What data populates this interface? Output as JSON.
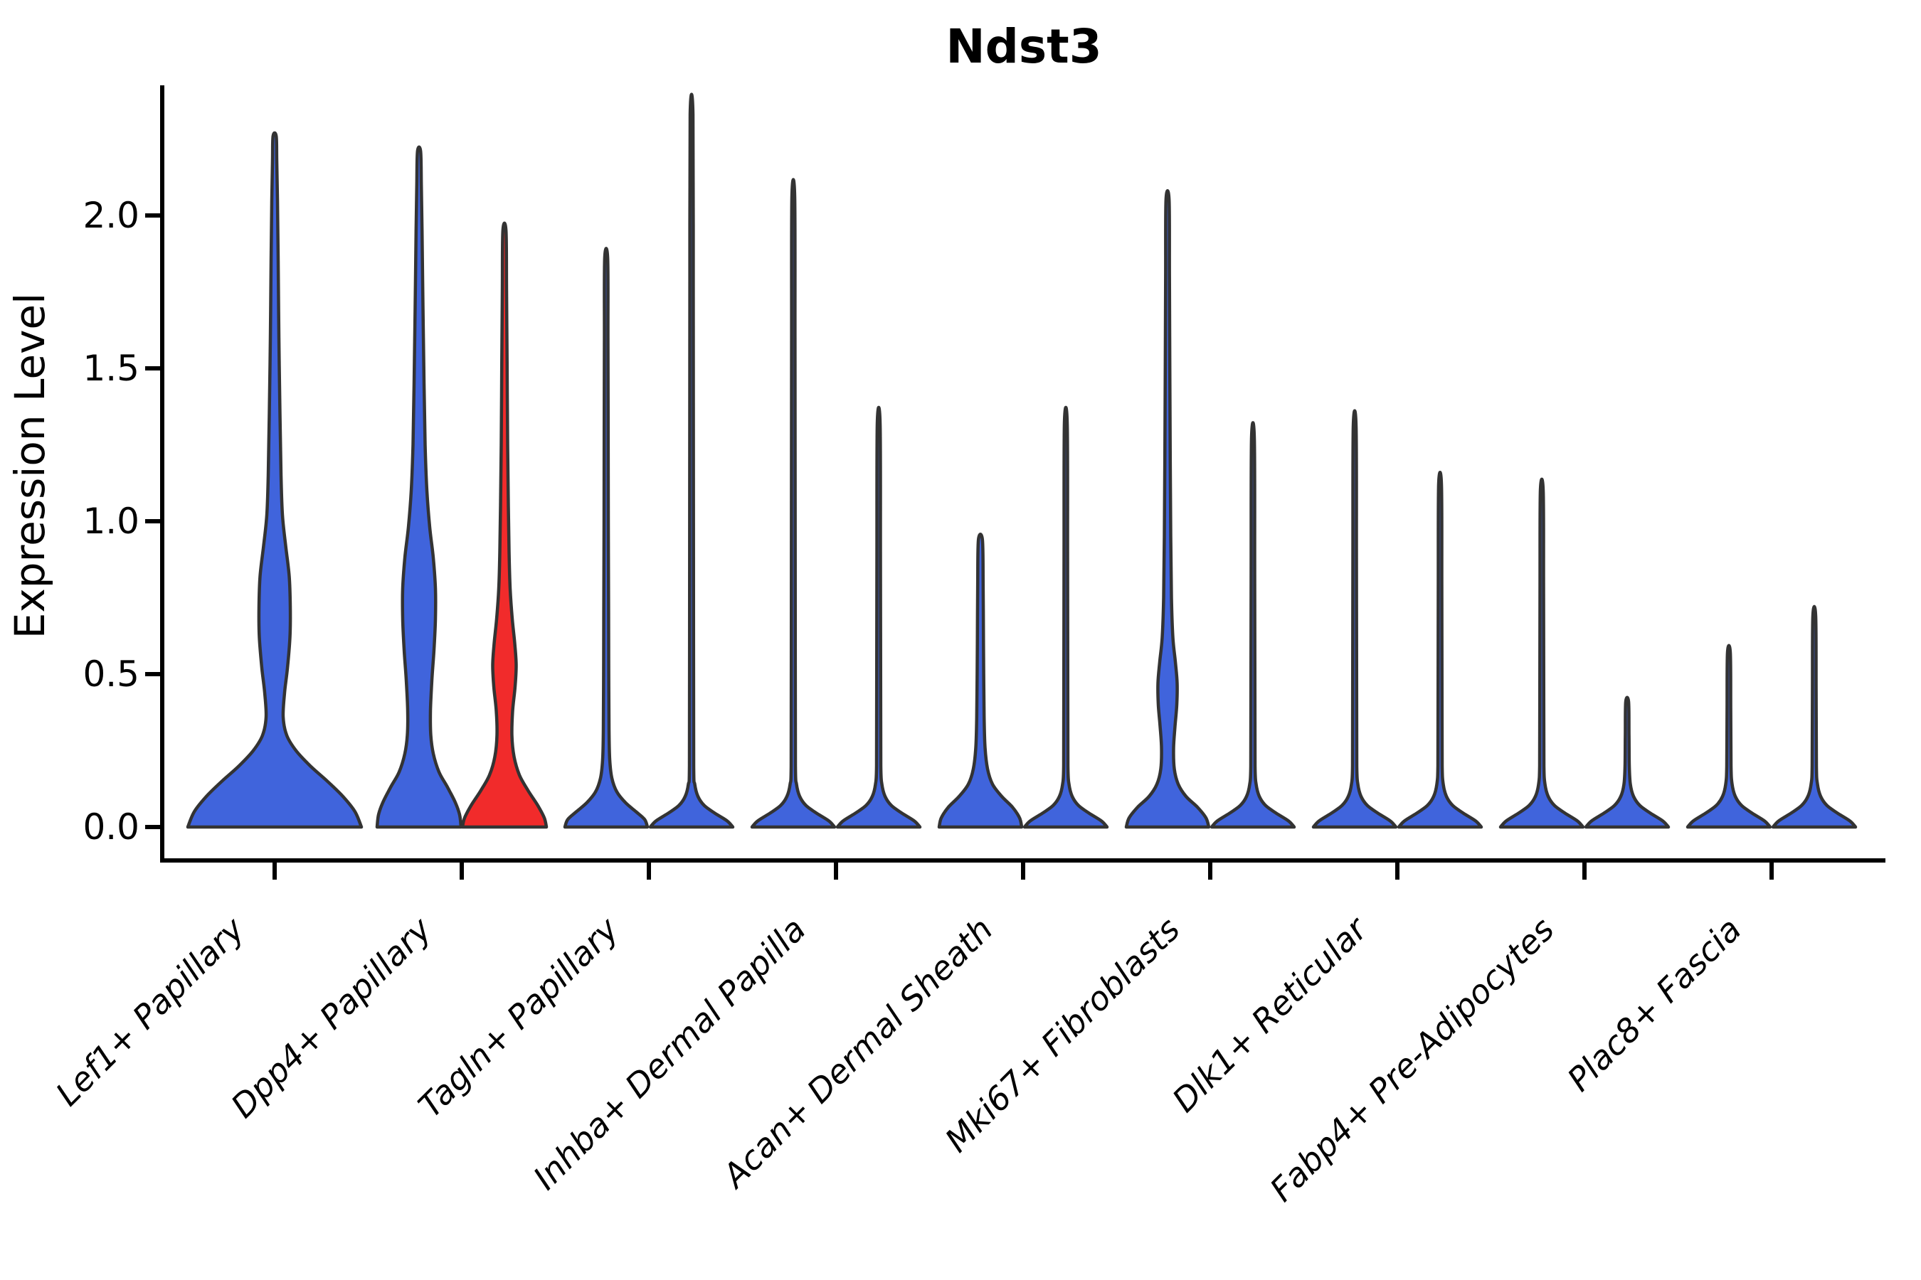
{
  "title": "Ndst3",
  "ylabel": "Expression Level",
  "colors": {
    "blue": "#4064DC",
    "red": "#F12B2B",
    "outline": "#333333",
    "axis": "#000000"
  },
  "chart_data": {
    "type": "violin",
    "title": "Ndst3",
    "xlabel": "",
    "ylabel": "Expression Level",
    "ylim": [
      0,
      2.42
    ],
    "grid": false,
    "legend": "none",
    "yticks": [
      "0.0",
      "0.5",
      "1.0",
      "1.5",
      "2.0"
    ],
    "ytick_values": [
      0.0,
      0.5,
      1.0,
      1.5,
      2.0
    ],
    "categories": [
      "Lef1+ Papillary",
      "Dpp4+ Papillary",
      "Tagln+ Papillary",
      "Inhba+ Dermal Papilla",
      "Acan+ Dermal Sheath",
      "Mki67+ Fibroblasts",
      "Dlk1+ Reticular",
      "Fabp4+ Pre-Adipocytes",
      "Plac8+ Fascia"
    ],
    "violins": [
      {
        "category": "Lef1+ Papillary",
        "side": "single",
        "color": "blue",
        "max_expression": 2.26,
        "profile": [
          [
            0,
            122
          ],
          [
            0.05,
            113
          ],
          [
            0.1,
            96
          ],
          [
            0.15,
            74
          ],
          [
            0.2,
            50
          ],
          [
            0.25,
            30
          ],
          [
            0.3,
            17
          ],
          [
            0.36,
            12
          ],
          [
            0.44,
            14
          ],
          [
            0.52,
            18
          ],
          [
            0.62,
            21.5
          ],
          [
            0.72,
            22
          ],
          [
            0.82,
            20.5
          ],
          [
            0.92,
            15.5
          ],
          [
            1.02,
            11
          ],
          [
            1.15,
            9
          ],
          [
            1.35,
            7.5
          ],
          [
            1.6,
            6
          ],
          [
            1.85,
            5
          ],
          [
            2.05,
            4
          ],
          [
            2.18,
            3
          ],
          [
            2.26,
            2.2
          ]
        ]
      },
      {
        "category": "Dpp4+ Papillary",
        "side": "left",
        "color": "blue",
        "max_expression": 2.21,
        "profile": [
          [
            0,
            59
          ],
          [
            0.04,
            57
          ],
          [
            0.08,
            51
          ],
          [
            0.13,
            40
          ],
          [
            0.18,
            28
          ],
          [
            0.24,
            20
          ],
          [
            0.3,
            16.5
          ],
          [
            0.38,
            16
          ],
          [
            0.48,
            18
          ],
          [
            0.58,
            21
          ],
          [
            0.68,
            23
          ],
          [
            0.78,
            23
          ],
          [
            0.88,
            20
          ],
          [
            0.98,
            15
          ],
          [
            1.1,
            11
          ],
          [
            1.25,
            8.5
          ],
          [
            1.45,
            7
          ],
          [
            1.7,
            5.5
          ],
          [
            1.95,
            4.2
          ],
          [
            2.1,
            3.2
          ],
          [
            2.21,
            2.2
          ]
        ]
      },
      {
        "category": "Dpp4+ Papillary",
        "side": "right",
        "color": "red",
        "max_expression": 1.95,
        "profile": [
          [
            0,
            59
          ],
          [
            0.03,
            56
          ],
          [
            0.07,
            47
          ],
          [
            0.12,
            33
          ],
          [
            0.17,
            21
          ],
          [
            0.23,
            13.5
          ],
          [
            0.3,
            10.5
          ],
          [
            0.38,
            11.5
          ],
          [
            0.46,
            15
          ],
          [
            0.53,
            16.5
          ],
          [
            0.6,
            14.5
          ],
          [
            0.68,
            11
          ],
          [
            0.78,
            8
          ],
          [
            0.9,
            6.5
          ],
          [
            1.05,
            5.5
          ],
          [
            1.25,
            4.5
          ],
          [
            1.5,
            3.8
          ],
          [
            1.75,
            3
          ],
          [
            1.95,
            2.2
          ]
        ]
      },
      {
        "category": "Tagln+ Papillary",
        "side": "left",
        "color": "blue",
        "max_expression": 1.86,
        "profile": [
          [
            0,
            58
          ],
          [
            0.025,
            54
          ],
          [
            0.05,
            42
          ],
          [
            0.08,
            27
          ],
          [
            0.115,
            15
          ],
          [
            0.16,
            8
          ],
          [
            0.22,
            5
          ],
          [
            0.32,
            4
          ],
          [
            0.5,
            3.6
          ],
          [
            0.7,
            3.4
          ],
          [
            1.0,
            3
          ],
          [
            1.3,
            2.8
          ],
          [
            1.6,
            2.5
          ],
          [
            1.86,
            2.1
          ]
        ]
      },
      {
        "category": "Tagln+ Papillary",
        "side": "right",
        "color": "blue",
        "max_expression": 2.33,
        "profile": [
          [
            0,
            58
          ],
          [
            0.02,
            50
          ],
          [
            0.045,
            33
          ],
          [
            0.07,
            18
          ],
          [
            0.1,
            9
          ],
          [
            0.14,
            4.5
          ],
          [
            0.2,
            3
          ],
          [
            0.6,
            2.8
          ],
          [
            1.2,
            2.6
          ],
          [
            1.8,
            2.4
          ],
          [
            2.33,
            2
          ]
        ]
      },
      {
        "category": "Inhba+ Dermal Papilla",
        "side": "left",
        "color": "blue",
        "max_expression": 2.06,
        "profile": [
          [
            0,
            58
          ],
          [
            0.02,
            50
          ],
          [
            0.045,
            33
          ],
          [
            0.07,
            18
          ],
          [
            0.1,
            9
          ],
          [
            0.14,
            4.5
          ],
          [
            0.2,
            3
          ],
          [
            0.55,
            2.8
          ],
          [
            1.1,
            2.6
          ],
          [
            1.6,
            2.4
          ],
          [
            2.06,
            2
          ]
        ]
      },
      {
        "category": "Inhba+ Dermal Papilla",
        "side": "right",
        "color": "blue",
        "max_expression": 1.32,
        "profile": [
          [
            0,
            58
          ],
          [
            0.02,
            50
          ],
          [
            0.045,
            33
          ],
          [
            0.07,
            18
          ],
          [
            0.1,
            9
          ],
          [
            0.14,
            4.5
          ],
          [
            0.2,
            3
          ],
          [
            0.45,
            2.8
          ],
          [
            0.9,
            2.5
          ],
          [
            1.32,
            2
          ]
        ]
      },
      {
        "category": "Acan+ Dermal Sheath",
        "side": "left",
        "color": "blue",
        "max_expression": 0.94,
        "profile": [
          [
            0,
            58
          ],
          [
            0.03,
            55
          ],
          [
            0.065,
            45
          ],
          [
            0.1,
            30
          ],
          [
            0.14,
            17
          ],
          [
            0.19,
            10
          ],
          [
            0.26,
            6.5
          ],
          [
            0.36,
            5.2
          ],
          [
            0.5,
            4.6
          ],
          [
            0.65,
            4.2
          ],
          [
            0.8,
            3.8
          ],
          [
            0.94,
            2.8
          ]
        ]
      },
      {
        "category": "Acan+ Dermal Sheath",
        "side": "right",
        "color": "blue",
        "max_expression": 1.32,
        "profile": [
          [
            0,
            58
          ],
          [
            0.02,
            50
          ],
          [
            0.045,
            33
          ],
          [
            0.07,
            18
          ],
          [
            0.1,
            9
          ],
          [
            0.14,
            4.5
          ],
          [
            0.2,
            3
          ],
          [
            0.45,
            2.8
          ],
          [
            0.9,
            2.5
          ],
          [
            1.32,
            2
          ]
        ]
      },
      {
        "category": "Mki67+ Fibroblasts",
        "side": "left",
        "color": "blue",
        "max_expression": 2.05,
        "profile": [
          [
            0,
            58
          ],
          [
            0.03,
            54
          ],
          [
            0.065,
            42
          ],
          [
            0.1,
            26
          ],
          [
            0.14,
            15
          ],
          [
            0.19,
            9.5
          ],
          [
            0.26,
            8.5
          ],
          [
            0.33,
            10.5
          ],
          [
            0.4,
            13
          ],
          [
            0.47,
            13.5
          ],
          [
            0.54,
            11
          ],
          [
            0.62,
            7.5
          ],
          [
            0.75,
            5.5
          ],
          [
            0.95,
            4.5
          ],
          [
            1.2,
            3.8
          ],
          [
            1.5,
            3.2
          ],
          [
            1.8,
            2.7
          ],
          [
            2.05,
            2.2
          ]
        ]
      },
      {
        "category": "Mki67+ Fibroblasts",
        "side": "right",
        "color": "blue",
        "max_expression": 1.27,
        "profile": [
          [
            0,
            58
          ],
          [
            0.02,
            50
          ],
          [
            0.045,
            33
          ],
          [
            0.07,
            18
          ],
          [
            0.1,
            9
          ],
          [
            0.14,
            4.5
          ],
          [
            0.2,
            3
          ],
          [
            0.45,
            2.8
          ],
          [
            0.85,
            2.5
          ],
          [
            1.27,
            2
          ]
        ]
      },
      {
        "category": "Dlk1+ Reticular",
        "side": "left",
        "color": "blue",
        "max_expression": 1.31,
        "profile": [
          [
            0,
            58
          ],
          [
            0.02,
            50
          ],
          [
            0.045,
            33
          ],
          [
            0.07,
            18
          ],
          [
            0.1,
            9
          ],
          [
            0.14,
            4.5
          ],
          [
            0.2,
            3
          ],
          [
            0.45,
            2.8
          ],
          [
            0.9,
            2.5
          ],
          [
            1.31,
            2
          ]
        ]
      },
      {
        "category": "Dlk1+ Reticular",
        "side": "right",
        "color": "blue",
        "max_expression": 1.12,
        "profile": [
          [
            0,
            58
          ],
          [
            0.02,
            50
          ],
          [
            0.045,
            33
          ],
          [
            0.07,
            18
          ],
          [
            0.1,
            9
          ],
          [
            0.14,
            4.5
          ],
          [
            0.2,
            3
          ],
          [
            0.4,
            2.8
          ],
          [
            0.8,
            2.5
          ],
          [
            1.12,
            2
          ]
        ]
      },
      {
        "category": "Fabp4+ Pre-Adipocytes",
        "side": "left",
        "color": "blue",
        "max_expression": 1.1,
        "profile": [
          [
            0,
            58
          ],
          [
            0.02,
            50
          ],
          [
            0.045,
            33
          ],
          [
            0.07,
            18
          ],
          [
            0.1,
            9
          ],
          [
            0.14,
            4.5
          ],
          [
            0.2,
            3
          ],
          [
            0.4,
            2.8
          ],
          [
            0.8,
            2.5
          ],
          [
            1.1,
            2
          ]
        ]
      },
      {
        "category": "Fabp4+ Pre-Adipocytes",
        "side": "right",
        "color": "blue",
        "max_expression": 0.41,
        "profile": [
          [
            0,
            58
          ],
          [
            0.02,
            50
          ],
          [
            0.045,
            33
          ],
          [
            0.07,
            18
          ],
          [
            0.1,
            9
          ],
          [
            0.14,
            4.5
          ],
          [
            0.2,
            3
          ],
          [
            0.3,
            2.6
          ],
          [
            0.41,
            2
          ]
        ]
      },
      {
        "category": "Plac8+ Fascia",
        "side": "left",
        "color": "blue",
        "max_expression": 0.57,
        "profile": [
          [
            0,
            58
          ],
          [
            0.02,
            50
          ],
          [
            0.045,
            33
          ],
          [
            0.07,
            18
          ],
          [
            0.1,
            9
          ],
          [
            0.14,
            4.5
          ],
          [
            0.2,
            3
          ],
          [
            0.38,
            2.6
          ],
          [
            0.57,
            2
          ]
        ]
      },
      {
        "category": "Plac8+ Fascia",
        "side": "right",
        "color": "blue",
        "max_expression": 0.69,
        "profile": [
          [
            0,
            58
          ],
          [
            0.02,
            50
          ],
          [
            0.045,
            33
          ],
          [
            0.07,
            18
          ],
          [
            0.1,
            9
          ],
          [
            0.14,
            4.5
          ],
          [
            0.2,
            3
          ],
          [
            0.44,
            2.6
          ],
          [
            0.69,
            2
          ]
        ]
      }
    ]
  }
}
